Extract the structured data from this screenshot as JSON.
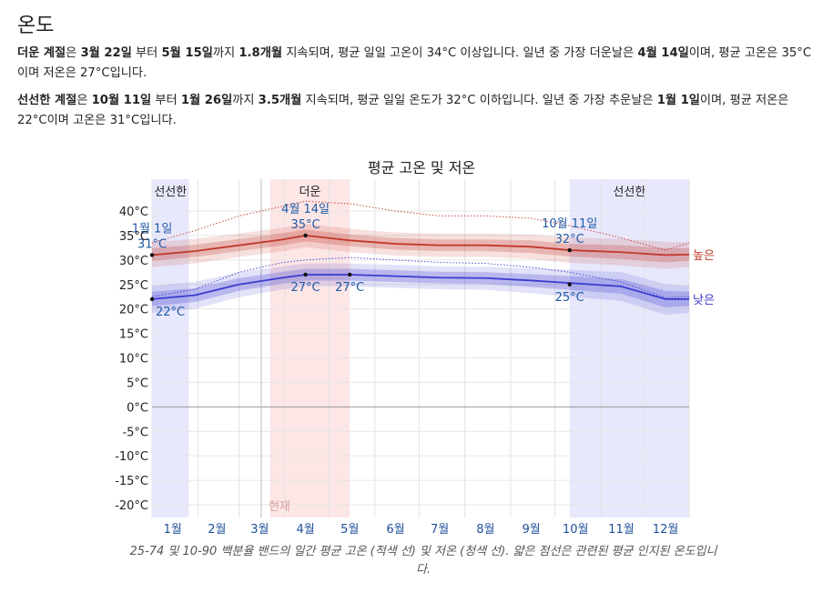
{
  "section_title": "온도",
  "paragraph1": {
    "season": "더운 계절",
    "t1": "은 ",
    "start": "3월 22일",
    "t2": " 부터 ",
    "end": "5월 15일",
    "t3": "까지 ",
    "duration": "1.8개월",
    "t4": " 지속되며, 평균 일일 고온이 34°C 이상입니다. 일년 중 가장 더운날은 ",
    "extreme_day": "4월 14일",
    "t5": "이며, 평균 고온은 35°C이며 저온은 27°C입니다."
  },
  "paragraph2": {
    "season": "선선한 계절",
    "t1": "은 ",
    "start": "10월 11일",
    "t2": " 부터 ",
    "end": "1월 26일",
    "t3": "까지 ",
    "duration": "3.5개월",
    "t4": " 지속되며, 평균 일일 온도가 32°C 이하입니다. 일년 중 가장 추운날은 ",
    "extreme_day": "1월 1일",
    "t5": "이며, 평균 저온은 22°C이며 고온은 31°C입니다."
  },
  "caption": "25-74 및 10-90 백분율 밴드의 일간 평균 고온 (적색 선) 및 저온 (청색 선). 얇은 점선은 관련된 평균 인지된 온도입니다.",
  "colors": {
    "high": "#c0392b",
    "low": "#3b3bd0",
    "hot_band": "#fde6e6",
    "cool_band": "#e8e8fc",
    "label_blue": "#1f5aa6"
  },
  "chart_data": {
    "type": "line",
    "title": "평균 고온 및 저온",
    "x_unit": "day of year",
    "ylim": [
      -23,
      35
    ],
    "y_ticks": [
      {
        "value": 40,
        "label": "40°C"
      },
      {
        "value": 35,
        "label": "35°C"
      },
      {
        "value": 30,
        "label": "30°C"
      },
      {
        "value": 25,
        "label": "25°C"
      },
      {
        "value": 20,
        "label": "20°C"
      },
      {
        "value": 15,
        "label": "15°C"
      },
      {
        "value": 10,
        "label": "10°C"
      },
      {
        "value": 5,
        "label": "5°C"
      },
      {
        "value": 0,
        "label": "0°C"
      },
      {
        "value": -5,
        "label": "-5°C"
      },
      {
        "value": -10,
        "label": "-10°C"
      },
      {
        "value": -15,
        "label": "-15°C"
      },
      {
        "value": -20,
        "label": "-20°C"
      }
    ],
    "months": [
      {
        "label": "1월",
        "day": 15
      },
      {
        "label": "2월",
        "day": 45
      },
      {
        "label": "3월",
        "day": 74
      },
      {
        "label": "4월",
        "day": 105
      },
      {
        "label": "5월",
        "day": 135
      },
      {
        "label": "6월",
        "day": 166
      },
      {
        "label": "7월",
        "day": 196
      },
      {
        "label": "8월",
        "day": 227
      },
      {
        "label": "9월",
        "day": 258
      },
      {
        "label": "10월",
        "day": 288
      },
      {
        "label": "11월",
        "day": 319
      },
      {
        "label": "12월",
        "day": 349
      }
    ],
    "seasons": [
      {
        "label": "선선한",
        "start_day": 1,
        "end_day": 26,
        "kind": "cool"
      },
      {
        "label": "더운",
        "start_day": 81,
        "end_day": 135,
        "kind": "hot"
      },
      {
        "label": "선선한",
        "start_day": 284,
        "end_day": 365,
        "kind": "cool"
      }
    ],
    "current_label": "현재",
    "current_day": 75,
    "series": [
      {
        "name": "높은",
        "days": [
          1,
          30,
          60,
          90,
          105,
          135,
          166,
          196,
          227,
          258,
          284,
          319,
          349,
          365
        ],
        "values": [
          31,
          31.8,
          33,
          34.2,
          35,
          34,
          33.3,
          33,
          33,
          32.7,
          32,
          31.6,
          31,
          31.1
        ],
        "p25_74": [
          [
            29.8,
            32.4
          ],
          [
            30.6,
            33.1
          ],
          [
            31.8,
            34.3
          ],
          [
            33,
            35.5
          ],
          [
            33.8,
            36.2
          ],
          [
            32.8,
            35.2
          ],
          [
            32.1,
            34.5
          ],
          [
            31.8,
            34.2
          ],
          [
            31.8,
            34.2
          ],
          [
            31.4,
            34
          ],
          [
            30.7,
            33.3
          ],
          [
            30.2,
            33
          ],
          [
            29.5,
            32.4
          ],
          [
            29.8,
            32.4
          ]
        ],
        "p10_90": [
          [
            28.5,
            33.6
          ],
          [
            29.3,
            34.3
          ],
          [
            30.6,
            35.4
          ],
          [
            31.8,
            36.6
          ],
          [
            32.6,
            37.4
          ],
          [
            31.6,
            36.4
          ],
          [
            30.9,
            35.6
          ],
          [
            30.6,
            35.4
          ],
          [
            30.6,
            35.4
          ],
          [
            30.2,
            35.2
          ],
          [
            29.4,
            34.6
          ],
          [
            28.9,
            34.3
          ],
          [
            28.2,
            33.7
          ],
          [
            28.5,
            33.6
          ]
        ],
        "feels_like": [
          33.5,
          36,
          39,
          41,
          42,
          41.5,
          40,
          39,
          39,
          38.5,
          37,
          34.5,
          32,
          33.5
        ],
        "endpoint_label": "높은"
      },
      {
        "name": "낮은",
        "days": [
          1,
          30,
          60,
          90,
          105,
          135,
          166,
          196,
          227,
          258,
          284,
          319,
          349,
          365
        ],
        "values": [
          22,
          22.8,
          25,
          26.4,
          27,
          27,
          26.7,
          26.4,
          26.3,
          25.8,
          25.3,
          24.6,
          22,
          22
        ],
        "p25_74": [
          [
            20.6,
            23.5
          ],
          [
            21.4,
            24.2
          ],
          [
            23.7,
            26.3
          ],
          [
            25.2,
            27.6
          ],
          [
            25.8,
            28.2
          ],
          [
            25.8,
            28.2
          ],
          [
            25.5,
            27.9
          ],
          [
            25.2,
            27.6
          ],
          [
            25.1,
            27.5
          ],
          [
            24.5,
            27.1
          ],
          [
            23.9,
            26.7
          ],
          [
            23.1,
            26.1
          ],
          [
            20.3,
            23.7
          ],
          [
            20.6,
            23.5
          ]
        ],
        "p10_90": [
          [
            19.2,
            24.8
          ],
          [
            20,
            25.5
          ],
          [
            22.4,
            27.5
          ],
          [
            24,
            28.7
          ],
          [
            24.6,
            29.3
          ],
          [
            24.6,
            29.3
          ],
          [
            24.3,
            29
          ],
          [
            24,
            28.7
          ],
          [
            23.9,
            28.6
          ],
          [
            23.2,
            28.3
          ],
          [
            22.5,
            28
          ],
          [
            21.6,
            27.5
          ],
          [
            18.8,
            25.1
          ],
          [
            19.2,
            24.8
          ]
        ],
        "feels_like": [
          22.5,
          24,
          27.5,
          29.5,
          30,
          30.5,
          30,
          29.5,
          29.3,
          28.5,
          27.5,
          25.5,
          22.3,
          22.5
        ],
        "endpoint_label": "낮은"
      }
    ],
    "annotations": [
      {
        "date": "1월 1일",
        "value_label": "31°C",
        "day": 1,
        "value": 31,
        "series": "high",
        "placement": "above"
      },
      {
        "date": "4월 14일",
        "value_label": "35°C",
        "day": 105,
        "value": 35,
        "series": "high",
        "placement": "above"
      },
      {
        "date": "10월 11일",
        "value_label": "32°C",
        "day": 284,
        "value": 32,
        "series": "high",
        "placement": "above"
      },
      {
        "date": "",
        "value_label": "22°C",
        "day": 1,
        "value": 22,
        "series": "low",
        "placement": "below"
      },
      {
        "date": "",
        "value_label": "27°C",
        "day": 105,
        "value": 27,
        "series": "low",
        "placement": "below"
      },
      {
        "date": "",
        "value_label": "27°C",
        "day": 135,
        "value": 27,
        "series": "low",
        "placement": "below"
      },
      {
        "date": "",
        "value_label": "25°C",
        "day": 284,
        "value": 25,
        "series": "low",
        "placement": "below"
      }
    ]
  }
}
